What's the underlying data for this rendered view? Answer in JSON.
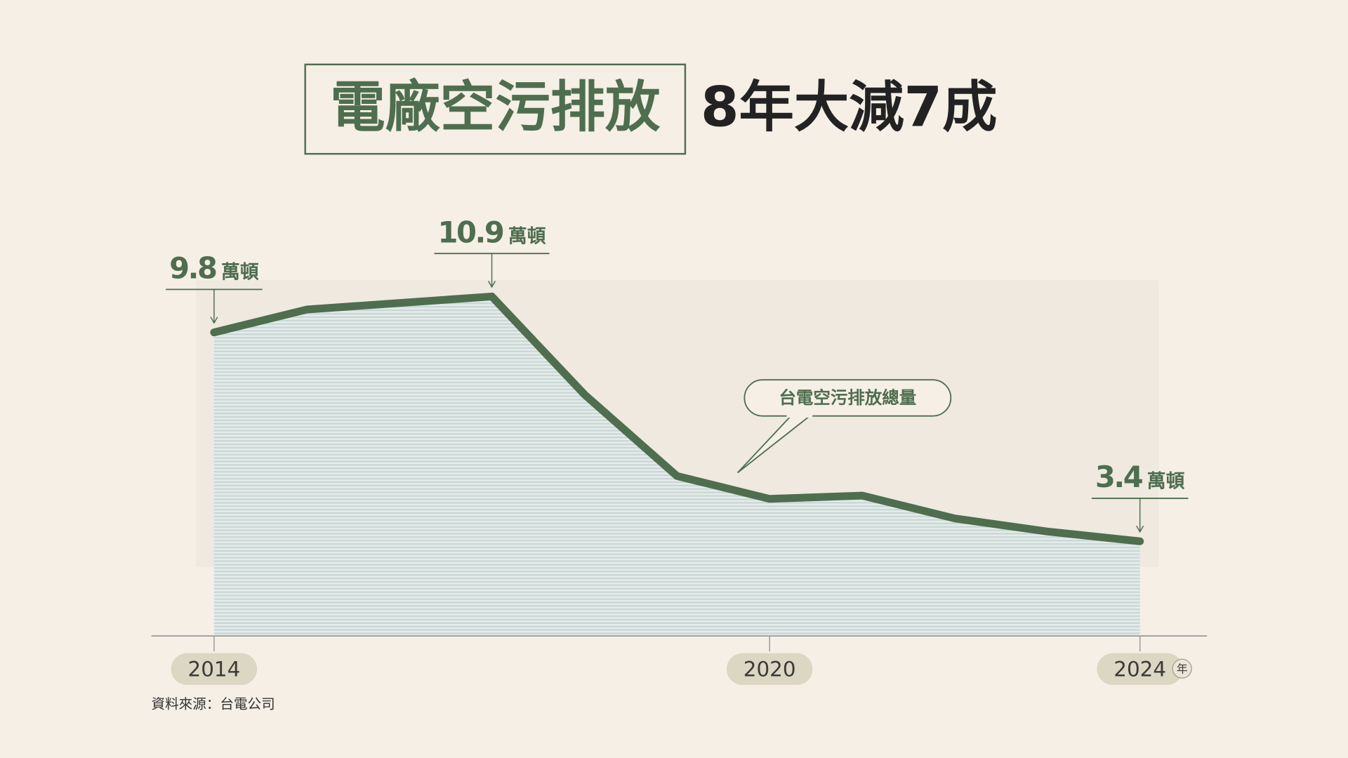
{
  "chart_data": {
    "type": "area",
    "title": "電廠空污排放",
    "subtitle": "8年大減7成",
    "x": [
      2014,
      2015,
      2016,
      2017,
      2018,
      2019,
      2020,
      2021,
      2022,
      2023,
      2024
    ],
    "xlim": [
      2014,
      2024
    ],
    "xticks": [
      2014,
      2020,
      2024
    ],
    "x_unit": "年",
    "ylim": [
      0.5,
      11.4
    ],
    "series": [
      {
        "name": "台電空污排放總量",
        "color": "#4e6e4f",
        "values": [
          9.8,
          10.5,
          10.7,
          10.9,
          7.9,
          5.4,
          4.7,
          4.8,
          4.1,
          3.7,
          3.4
        ],
        "value_labels": [
          "9.8",
          null,
          null,
          "10.9",
          null,
          null,
          null,
          null,
          null,
          null,
          "3.4"
        ]
      }
    ],
    "value_unit": "萬頓",
    "source": "資料來源：台電公司"
  }
}
